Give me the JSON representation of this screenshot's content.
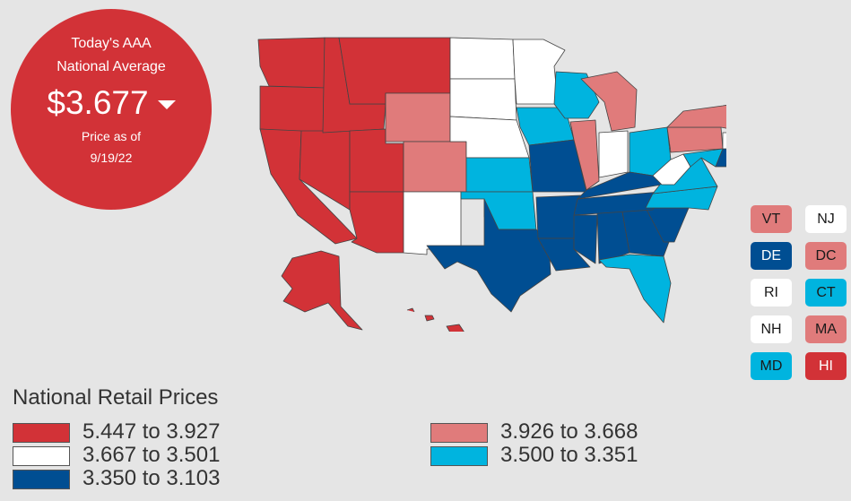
{
  "badge": {
    "line1": "Today's AAA",
    "line2": "National Average",
    "price": "$3.677",
    "as_of": "Price as of",
    "date": "9/19/22"
  },
  "colors": {
    "tier1": "#d23237",
    "tier2": "#e07b7b",
    "tier3": "#ffffff",
    "tier4": "#00b4df",
    "tier5": "#004e92"
  },
  "small_states": [
    {
      "code": "VT",
      "tier": "tier2"
    },
    {
      "code": "NJ",
      "tier": "tier3"
    },
    {
      "code": "DE",
      "tier": "tier5"
    },
    {
      "code": "DC",
      "tier": "tier2"
    },
    {
      "code": "RI",
      "tier": "tier3"
    },
    {
      "code": "CT",
      "tier": "tier4"
    },
    {
      "code": "NH",
      "tier": "tier3"
    },
    {
      "code": "MA",
      "tier": "tier2"
    },
    {
      "code": "MD",
      "tier": "tier4"
    },
    {
      "code": "HI",
      "tier": "tier1"
    }
  ],
  "legend": {
    "title": "National Retail Prices",
    "items": [
      {
        "label": "5.447 to 3.927",
        "tier": "tier1"
      },
      {
        "label": "3.667 to 3.501",
        "tier": "tier3"
      },
      {
        "label": "3.350 to 3.103",
        "tier": "tier5"
      },
      {
        "label": "3.926 to 3.668",
        "tier": "tier2"
      },
      {
        "label": "3.500 to 3.351",
        "tier": "tier4"
      }
    ]
  }
}
